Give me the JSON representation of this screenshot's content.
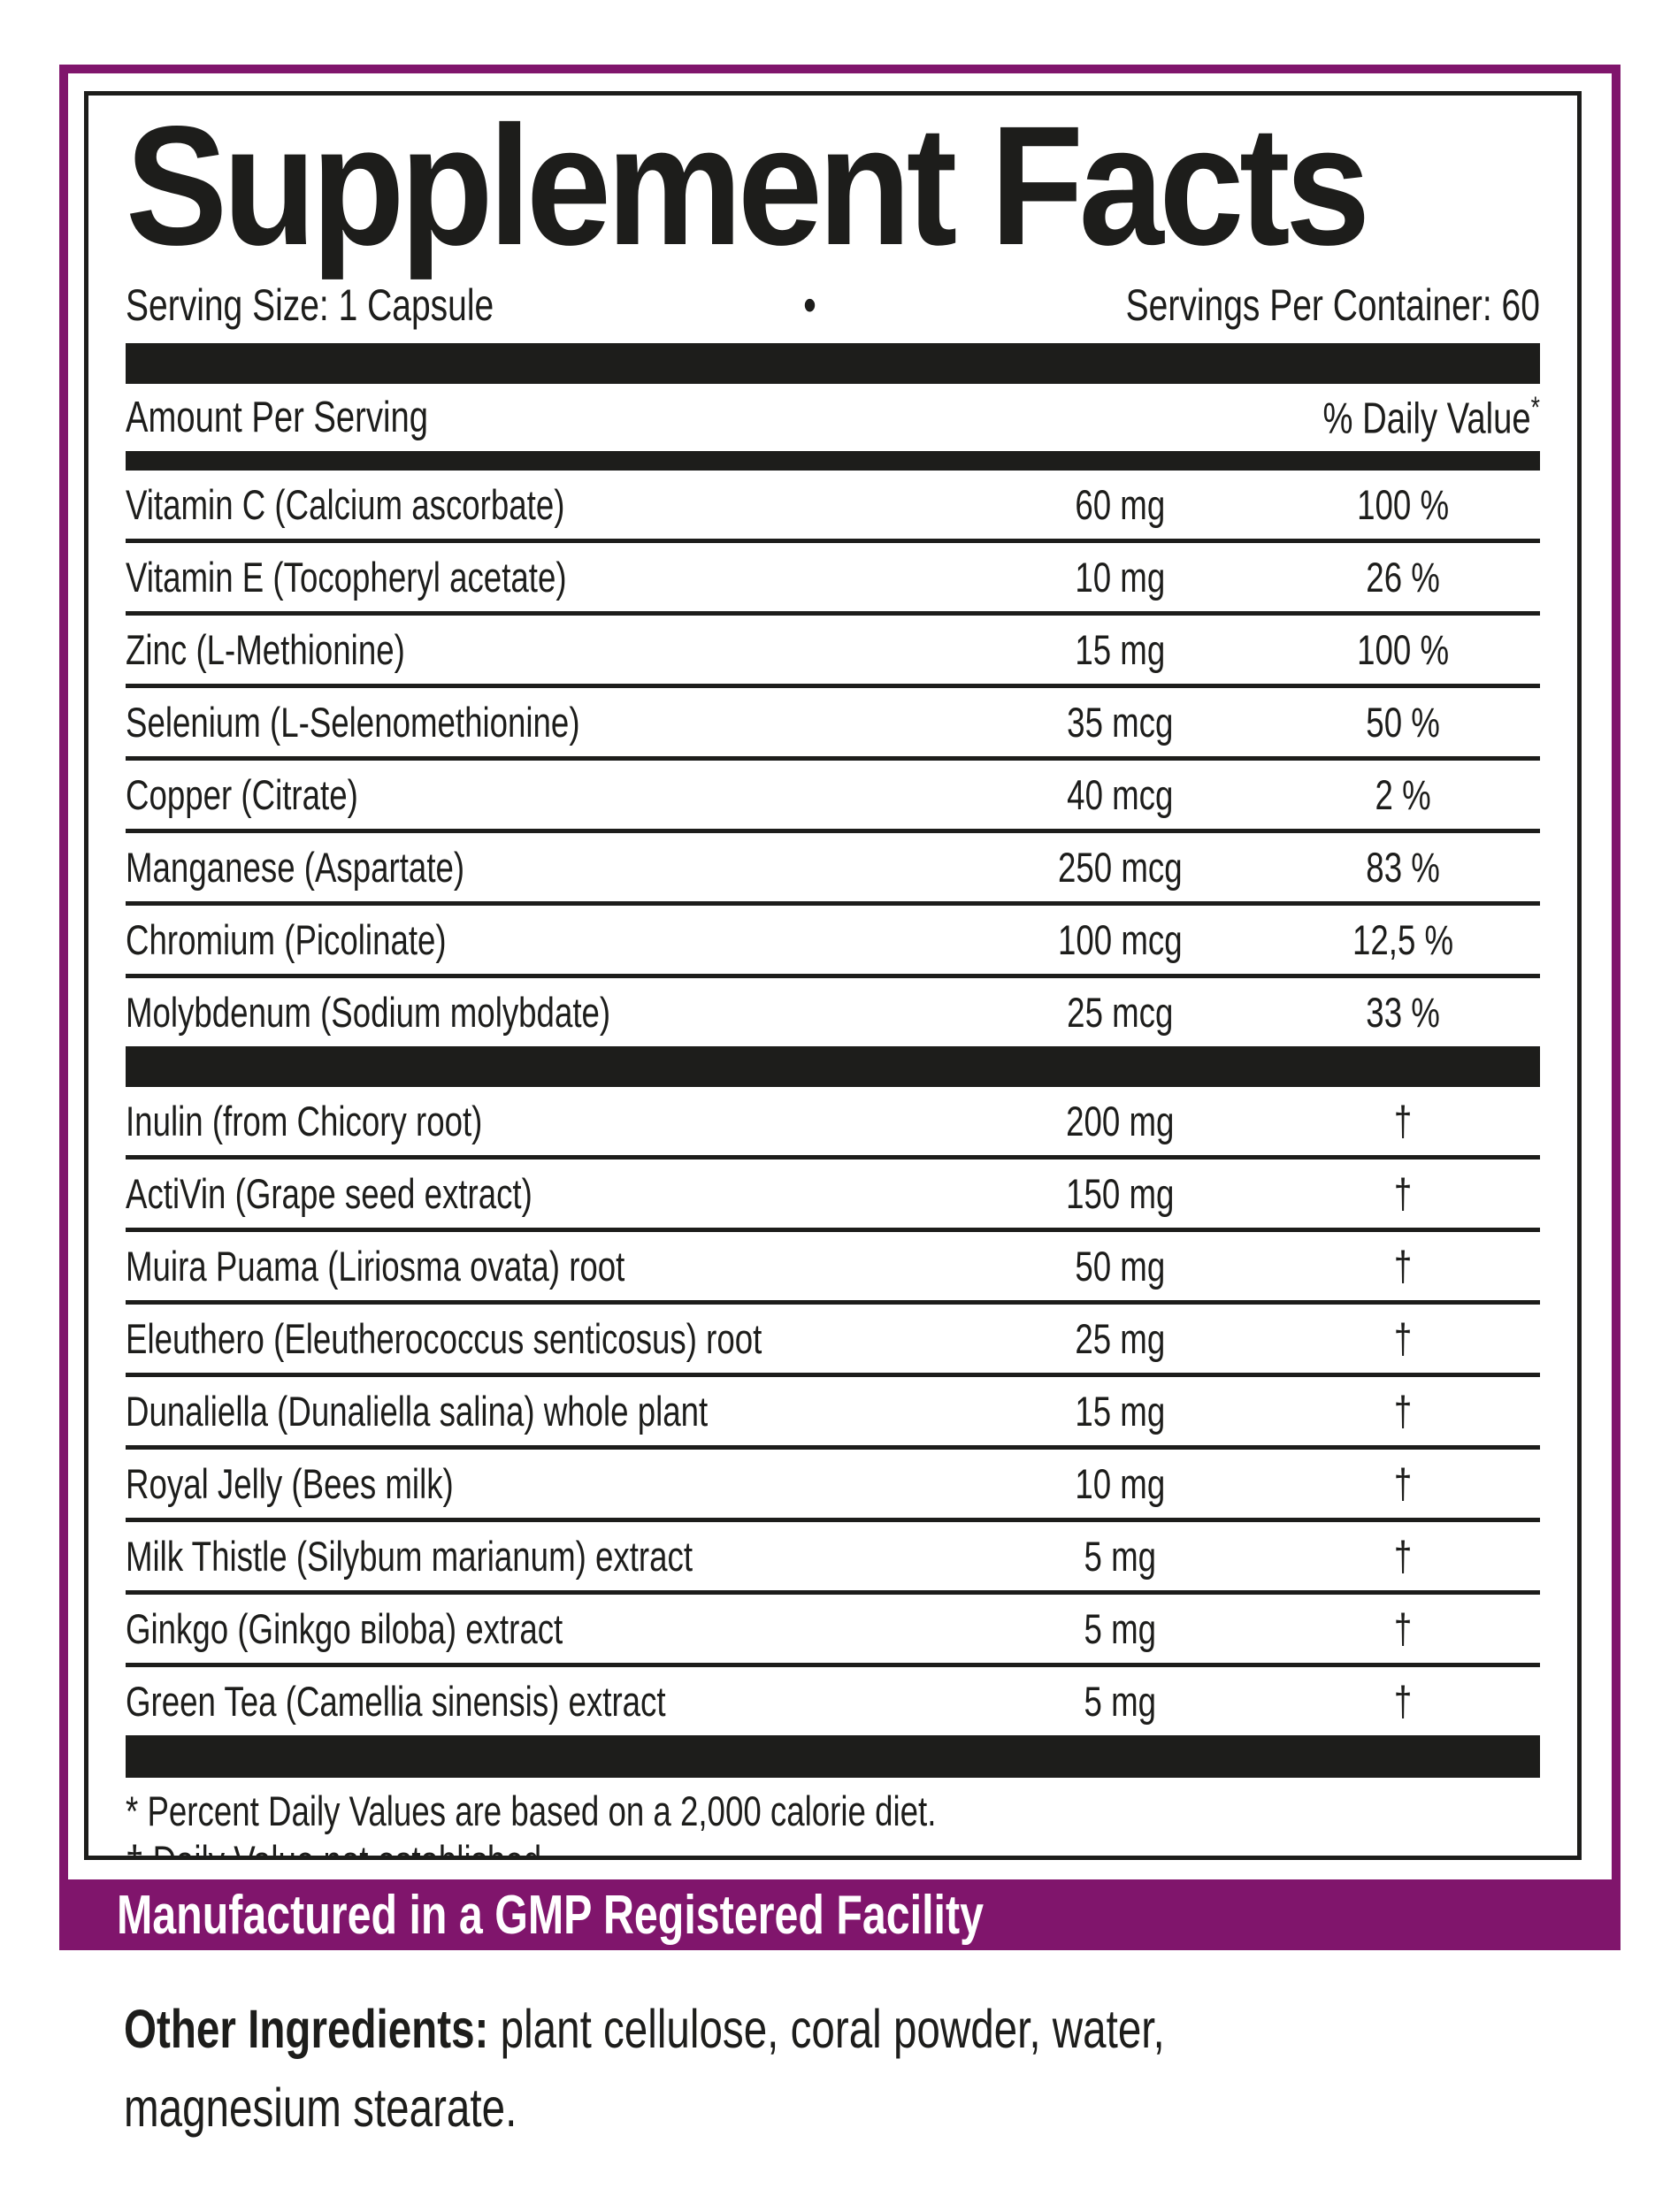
{
  "title": "Supplement Facts",
  "serving": {
    "size": "Serving Size: 1 Capsule",
    "bullet": "•",
    "per_container": "Servings Per Container: 60"
  },
  "columns": {
    "amount_header": "Amount Per Serving",
    "dv_header": "% Daily Value",
    "dv_header_mark": "*"
  },
  "minerals": [
    {
      "name": "Vitamin C (Calcium ascorbate)",
      "amount": "60 mg",
      "dv": "100 %"
    },
    {
      "name": "Vitamin E (Tocopheryl acetate)",
      "amount": "10 mg",
      "dv": "26 %"
    },
    {
      "name": "Zinc (L-Methionine)",
      "amount": "15 mg",
      "dv": "100 %"
    },
    {
      "name": "Selenium (L-Selenomethionine)",
      "amount": "35 mcg",
      "dv": "50 %"
    },
    {
      "name": "Copper (Citrate)",
      "amount": "40 mcg",
      "dv": "2 %"
    },
    {
      "name": "Manganese (Aspartate)",
      "amount": "250 mcg",
      "dv": "83 %"
    },
    {
      "name": "Chromium (Picolinate)",
      "amount": "100 mcg",
      "dv": "12,5 %"
    },
    {
      "name": "Molybdenum (Sodium molybdate)",
      "amount": "25 mcg",
      "dv": "33 %"
    }
  ],
  "botanicals": [
    {
      "name": "Inulin (from Chicory root)",
      "amount": "200 mg",
      "dv": "†"
    },
    {
      "name": "ActiVin (Grape seed extract)",
      "amount": "150 mg",
      "dv": "†"
    },
    {
      "name": "Muira Puama (Liriosma ovata) root",
      "amount": "50 mg",
      "dv": "†"
    },
    {
      "name": "Eleuthero (Eleutherococcus senticosus) root",
      "amount": "25 mg",
      "dv": "†"
    },
    {
      "name": "Dunaliella (Dunaliella salina) whole plant",
      "amount": "15 mg",
      "dv": "†"
    },
    {
      "name": "Royal Jelly (Bees milk)",
      "amount": "10 mg",
      "dv": "†"
    },
    {
      "name": "Milk Thistle (Silybum marianum) extract",
      "amount": "5 mg",
      "dv": "†"
    },
    {
      "name": "Ginkgo (Ginkgo вiloba) extract",
      "amount": "5 mg",
      "dv": "†"
    },
    {
      "name": "Green Tea (Camellia sinensis) extract",
      "amount": "5 mg",
      "dv": "†"
    }
  ],
  "footnotes": {
    "asterisk": "* Percent Daily Values are based on a 2,000 calorie diet.",
    "dagger": "† Daily Value not established."
  },
  "gmp_banner": "Manufactured in a GMP Registered Facility",
  "other_ingredients": {
    "label": "Other Ingredients:",
    "text": " plant cellulose, coral powder, water, magnesium stearate."
  },
  "colors": {
    "accent_purple": "#80156c",
    "ink": "#1d1d1b"
  }
}
